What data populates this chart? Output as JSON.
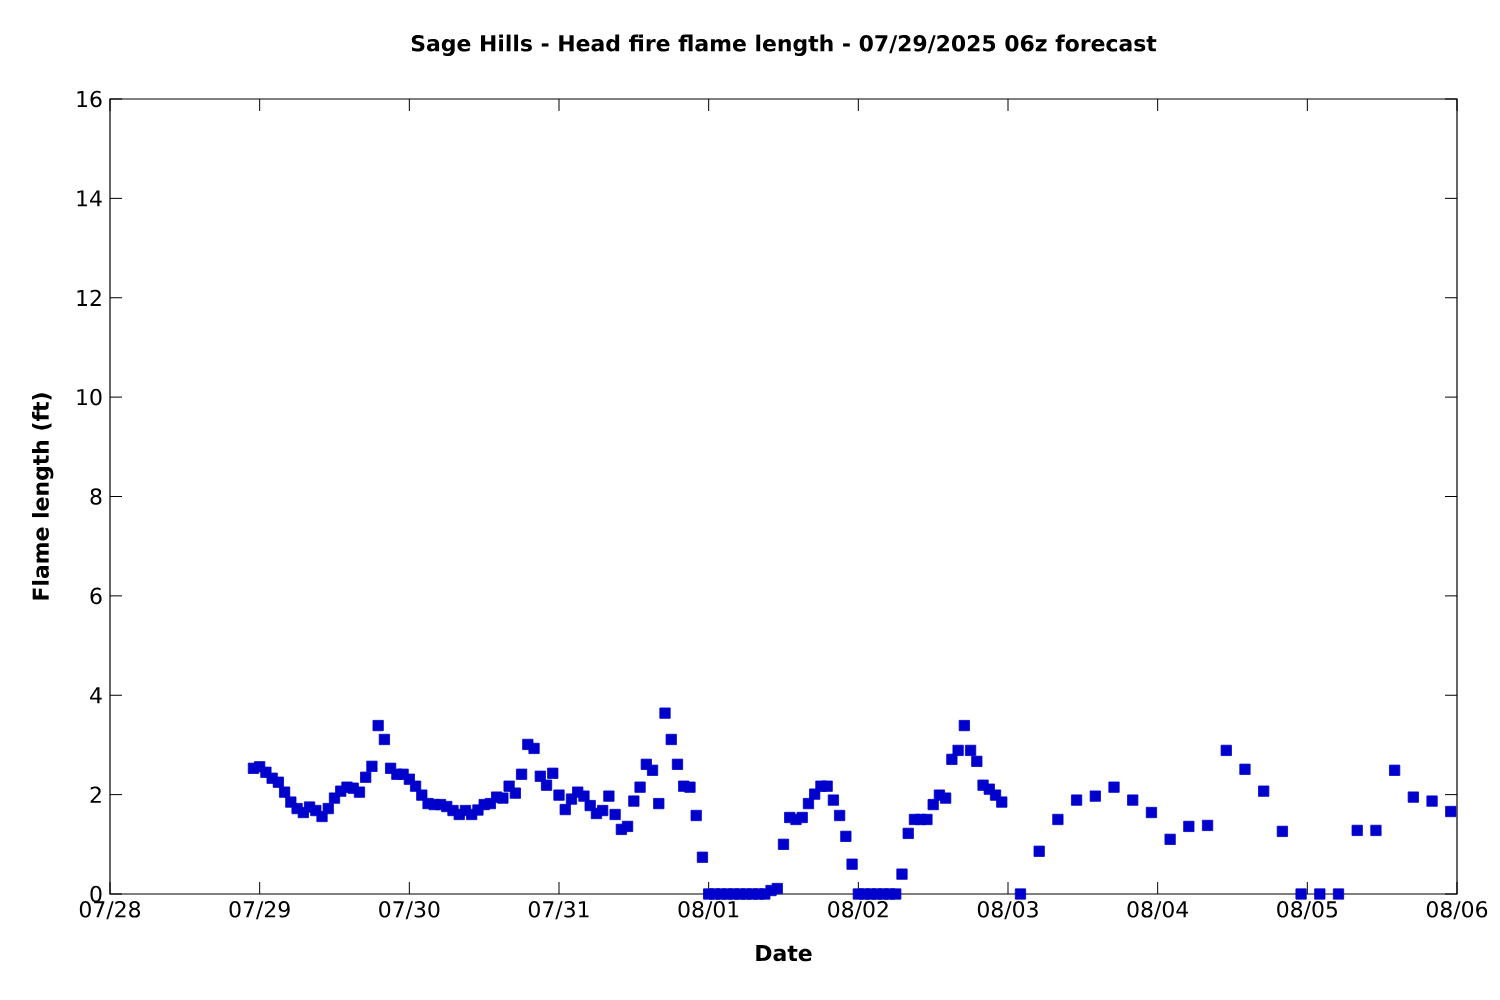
{
  "chart_data": {
    "type": "scatter",
    "title": "Sage Hills - Head fire flame length - 07/29/2025 06z forecast",
    "xlabel": "Date",
    "ylabel": "Flame length (ft)",
    "x": [
      "2025-07-28T23:00",
      "2025-07-29T00:00",
      "2025-07-29T01:00",
      "2025-07-29T02:00",
      "2025-07-29T03:00",
      "2025-07-29T04:00",
      "2025-07-29T05:00",
      "2025-07-29T06:00",
      "2025-07-29T07:00",
      "2025-07-29T08:00",
      "2025-07-29T09:00",
      "2025-07-29T10:00",
      "2025-07-29T11:00",
      "2025-07-29T12:00",
      "2025-07-29T13:00",
      "2025-07-29T14:00",
      "2025-07-29T15:00",
      "2025-07-29T16:00",
      "2025-07-29T17:00",
      "2025-07-29T18:00",
      "2025-07-29T19:00",
      "2025-07-29T20:00",
      "2025-07-29T21:00",
      "2025-07-29T22:00",
      "2025-07-29T23:00",
      "2025-07-30T00:00",
      "2025-07-30T01:00",
      "2025-07-30T02:00",
      "2025-07-30T03:00",
      "2025-07-30T04:00",
      "2025-07-30T05:00",
      "2025-07-30T06:00",
      "2025-07-30T07:00",
      "2025-07-30T08:00",
      "2025-07-30T09:00",
      "2025-07-30T10:00",
      "2025-07-30T11:00",
      "2025-07-30T12:00",
      "2025-07-30T13:00",
      "2025-07-30T14:00",
      "2025-07-30T15:00",
      "2025-07-30T16:00",
      "2025-07-30T17:00",
      "2025-07-30T18:00",
      "2025-07-30T19:00",
      "2025-07-30T20:00",
      "2025-07-30T21:00",
      "2025-07-30T22:00",
      "2025-07-30T23:00",
      "2025-07-31T00:00",
      "2025-07-31T01:00",
      "2025-07-31T02:00",
      "2025-07-31T03:00",
      "2025-07-31T04:00",
      "2025-07-31T05:00",
      "2025-07-31T06:00",
      "2025-07-31T07:00",
      "2025-07-31T08:00",
      "2025-07-31T09:00",
      "2025-07-31T10:00",
      "2025-07-31T11:00",
      "2025-07-31T12:00",
      "2025-07-31T13:00",
      "2025-07-31T14:00",
      "2025-07-31T15:00",
      "2025-07-31T16:00",
      "2025-07-31T17:00",
      "2025-07-31T18:00",
      "2025-07-31T19:00",
      "2025-07-31T20:00",
      "2025-07-31T21:00",
      "2025-07-31T22:00",
      "2025-07-31T23:00",
      "2025-08-01T00:00",
      "2025-08-01T01:00",
      "2025-08-01T02:00",
      "2025-08-01T03:00",
      "2025-08-01T04:00",
      "2025-08-01T05:00",
      "2025-08-01T06:00",
      "2025-08-01T07:00",
      "2025-08-01T08:00",
      "2025-08-01T09:00",
      "2025-08-01T10:00",
      "2025-08-01T11:00",
      "2025-08-01T12:00",
      "2025-08-01T13:00",
      "2025-08-01T14:00",
      "2025-08-01T15:00",
      "2025-08-01T16:00",
      "2025-08-01T17:00",
      "2025-08-01T18:00",
      "2025-08-01T19:00",
      "2025-08-01T20:00",
      "2025-08-01T21:00",
      "2025-08-01T22:00",
      "2025-08-01T23:00",
      "2025-08-02T00:00",
      "2025-08-02T01:00",
      "2025-08-02T02:00",
      "2025-08-02T03:00",
      "2025-08-02T04:00",
      "2025-08-02T05:00",
      "2025-08-02T06:00",
      "2025-08-02T07:00",
      "2025-08-02T08:00",
      "2025-08-02T09:00",
      "2025-08-02T10:00",
      "2025-08-02T11:00",
      "2025-08-02T12:00",
      "2025-08-02T13:00",
      "2025-08-02T14:00",
      "2025-08-02T15:00",
      "2025-08-02T16:00",
      "2025-08-02T17:00",
      "2025-08-02T18:00",
      "2025-08-02T19:00",
      "2025-08-02T20:00",
      "2025-08-02T21:00",
      "2025-08-02T22:00",
      "2025-08-02T23:00",
      "2025-08-03T02:00",
      "2025-08-03T05:00",
      "2025-08-03T08:00",
      "2025-08-03T11:00",
      "2025-08-03T14:00",
      "2025-08-03T17:00",
      "2025-08-03T20:00",
      "2025-08-03T23:00",
      "2025-08-04T02:00",
      "2025-08-04T05:00",
      "2025-08-04T08:00",
      "2025-08-04T11:00",
      "2025-08-04T14:00",
      "2025-08-04T17:00",
      "2025-08-04T20:00",
      "2025-08-04T23:00",
      "2025-08-05T02:00",
      "2025-08-05T05:00",
      "2025-08-05T08:00",
      "2025-08-05T11:00",
      "2025-08-05T14:00",
      "2025-08-05T17:00",
      "2025-08-05T20:00",
      "2025-08-05T23:00"
    ],
    "values": [
      2.53,
      2.56,
      2.45,
      2.33,
      2.25,
      2.05,
      1.85,
      1.72,
      1.64,
      1.75,
      1.68,
      1.56,
      1.72,
      1.93,
      2.07,
      2.15,
      2.13,
      2.05,
      2.35,
      2.57,
      3.39,
      3.11,
      2.53,
      2.41,
      2.41,
      2.31,
      2.17,
      1.99,
      1.82,
      1.8,
      1.8,
      1.76,
      1.68,
      1.6,
      1.68,
      1.6,
      1.69,
      1.8,
      1.82,
      1.95,
      1.93,
      2.17,
      2.03,
      2.41,
      3.01,
      2.93,
      2.37,
      2.19,
      2.43,
      1.99,
      1.7,
      1.91,
      2.05,
      1.97,
      1.78,
      1.62,
      1.68,
      1.97,
      1.6,
      1.3,
      1.36,
      1.87,
      2.15,
      2.61,
      2.49,
      1.82,
      3.64,
      3.11,
      2.61,
      2.17,
      2.15,
      1.58,
      0.74,
      0,
      0,
      0,
      0,
      0,
      0,
      0,
      0,
      0,
      0,
      0.07,
      0.11,
      1.0,
      1.54,
      1.5,
      1.54,
      1.82,
      2.01,
      2.17,
      2.17,
      1.89,
      1.58,
      1.16,
      0.6,
      0,
      0,
      0,
      0,
      0,
      0,
      0,
      0.4,
      1.22,
      1.5,
      1.5,
      1.5,
      1.8,
      1.99,
      1.93,
      2.71,
      2.89,
      3.39,
      2.89,
      2.67,
      2.19,
      2.11,
      1.99,
      1.85,
      0,
      0.86,
      1.5,
      1.89,
      1.97,
      2.15,
      1.89,
      1.64,
      1.1,
      1.36,
      1.38,
      2.89,
      2.51,
      2.07,
      1.26,
      0,
      0,
      0,
      1.28,
      1.28,
      2.49,
      1.95,
      1.87,
      1.66
    ],
    "color": "#0000cc",
    "marker": "square",
    "xlim": [
      "2025-07-28",
      "2025-08-06"
    ],
    "xticks": [
      {
        "value": "2025-07-28",
        "label": "07/28"
      },
      {
        "value": "2025-07-29",
        "label": "07/29"
      },
      {
        "value": "2025-07-30",
        "label": "07/30"
      },
      {
        "value": "2025-07-31",
        "label": "07/31"
      },
      {
        "value": "2025-08-01",
        "label": "08/01"
      },
      {
        "value": "2025-08-02",
        "label": "08/02"
      },
      {
        "value": "2025-08-03",
        "label": "08/03"
      },
      {
        "value": "2025-08-04",
        "label": "08/04"
      },
      {
        "value": "2025-08-05",
        "label": "08/05"
      },
      {
        "value": "2025-08-06",
        "label": "08/06"
      }
    ],
    "ylim": [
      0,
      16
    ],
    "yticks": [
      0,
      2,
      4,
      6,
      8,
      10,
      12,
      14,
      16
    ]
  }
}
